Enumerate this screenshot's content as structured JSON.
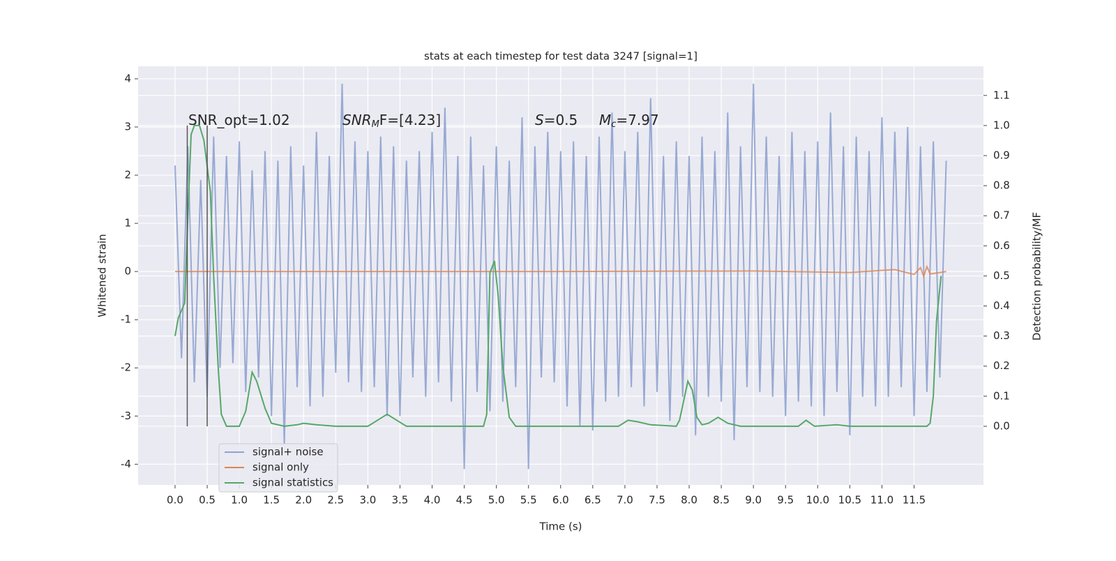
{
  "chart_data": {
    "type": "line",
    "title": "stats at each timestep for test data 3247 [signal=1]",
    "xlabel": "Time (s)",
    "ylabel": "Whitened strain",
    "y2label": "Detection probability/MF",
    "xlim": [
      -0.575,
      12.58
    ],
    "ylim": [
      -4.43,
      4.26
    ],
    "y2lim": [
      -0.195,
      1.197
    ],
    "xticks": [
      {
        "value": 0,
        "label": "0.0"
      },
      {
        "value": 0.5,
        "label": "0.5"
      },
      {
        "value": 1,
        "label": "1.0"
      },
      {
        "value": 1.5,
        "label": "1.5"
      },
      {
        "value": 2,
        "label": "2.0"
      },
      {
        "value": 2.5,
        "label": "2.5"
      },
      {
        "value": 3,
        "label": "3.0"
      },
      {
        "value": 3.5,
        "label": "3.5"
      },
      {
        "value": 4,
        "label": "4.0"
      },
      {
        "value": 4.5,
        "label": "4.5"
      },
      {
        "value": 5,
        "label": "5.0"
      },
      {
        "value": 5.5,
        "label": "5.5"
      },
      {
        "value": 6,
        "label": "6.0"
      },
      {
        "value": 6.5,
        "label": "6.5"
      },
      {
        "value": 7,
        "label": "7.0"
      },
      {
        "value": 7.5,
        "label": "7.5"
      },
      {
        "value": 8,
        "label": "8.0"
      },
      {
        "value": 8.5,
        "label": "8.5"
      },
      {
        "value": 9,
        "label": "9.0"
      },
      {
        "value": 9.5,
        "label": "9.5"
      },
      {
        "value": 10,
        "label": "10.0"
      },
      {
        "value": 10.5,
        "label": "10.5"
      },
      {
        "value": 11,
        "label": "11.0"
      },
      {
        "value": 11.5,
        "label": "11.5"
      }
    ],
    "yticks": [
      -4,
      -3,
      -2,
      -1,
      0,
      1,
      2,
      3,
      4
    ],
    "y2ticks": [
      {
        "value": 0,
        "label": "0.0"
      },
      {
        "value": 0.1,
        "label": "0.1"
      },
      {
        "value": 0.2,
        "label": "0.2"
      },
      {
        "value": 0.3,
        "label": "0.3"
      },
      {
        "value": 0.4,
        "label": "0.4"
      },
      {
        "value": 0.5,
        "label": "0.5"
      },
      {
        "value": 0.6,
        "label": "0.6"
      },
      {
        "value": 0.7,
        "label": "0.7"
      },
      {
        "value": 0.8,
        "label": "0.8"
      },
      {
        "value": 0.9,
        "label": "0.9"
      },
      {
        "value": 1,
        "label": "1.0"
      },
      {
        "value": 1.1,
        "label": "1.1"
      }
    ],
    "grid": true,
    "legend": "lower left",
    "annotations": [
      [
        {
          "t": "SNR_opt=1.02",
          "style": "normal"
        }
      ],
      [
        {
          "t": "SNR",
          "style": "italic"
        },
        {
          "t": "M",
          "style": "sub"
        },
        {
          "t": "F=[4.23]",
          "style": "normal"
        }
      ],
      [
        {
          "t": "S",
          "style": "italic"
        },
        {
          "t": "=0.5",
          "style": "normal"
        }
      ],
      [
        {
          "t": "M",
          "style": "italic"
        },
        {
          "t": "c",
          "style": "sub"
        },
        {
          "t": "=7.97",
          "style": "normal"
        }
      ]
    ],
    "vlines": [
      0.19,
      0.5
    ],
    "vline_color": "#555555",
    "series": [
      {
        "name": "signal+ noise",
        "color": "#8fa3cf",
        "axis": "y",
        "x": [
          0,
          0.1,
          0.2,
          0.3,
          0.4,
          0.5,
          0.6,
          0.7,
          0.8,
          0.9,
          1,
          1.1,
          1.2,
          1.3,
          1.4,
          1.5,
          1.6,
          1.7,
          1.8,
          1.9,
          2,
          2.1,
          2.2,
          2.3,
          2.4,
          2.5,
          2.6,
          2.7,
          2.8,
          2.9,
          3,
          3.1,
          3.2,
          3.3,
          3.4,
          3.5,
          3.6,
          3.7,
          3.8,
          3.9,
          4,
          4.1,
          4.2,
          4.3,
          4.4,
          4.5,
          4.6,
          4.7,
          4.8,
          4.9,
          5,
          5.1,
          5.2,
          5.3,
          5.4,
          5.5,
          5.6,
          5.7,
          5.8,
          5.9,
          6,
          6.1,
          6.2,
          6.3,
          6.4,
          6.5,
          6.6,
          6.7,
          6.8,
          6.9,
          7,
          7.1,
          7.2,
          7.3,
          7.4,
          7.5,
          7.6,
          7.7,
          7.8,
          7.9,
          8,
          8.1,
          8.2,
          8.3,
          8.4,
          8.5,
          8.6,
          8.7,
          8.8,
          8.9,
          9,
          9.1,
          9.2,
          9.3,
          9.4,
          9.5,
          9.6,
          9.7,
          9.8,
          9.9,
          10,
          10.1,
          10.2,
          10.3,
          10.4,
          10.5,
          10.6,
          10.7,
          10.8,
          10.9,
          11,
          11.1,
          11.2,
          11.3,
          11.4,
          11.5,
          11.6,
          11.7,
          11.8,
          11.9,
          12
        ],
        "values": [
          2.2,
          -1.8,
          2.6,
          -2.3,
          1.9,
          -2.6,
          2.8,
          -2.0,
          2.4,
          -1.9,
          2.7,
          -2.5,
          2.1,
          -2.2,
          2.5,
          -3.0,
          2.3,
          -3.6,
          2.6,
          -2.4,
          2.2,
          -2.8,
          2.9,
          -2.6,
          2.4,
          -2.1,
          3.9,
          -2.3,
          2.7,
          -2.5,
          2.5,
          -2.4,
          2.8,
          -3.0,
          2.6,
          -3.0,
          2.3,
          -2.2,
          2.5,
          -2.6,
          2.9,
          -2.3,
          3.4,
          -2.7,
          2.4,
          -4.1,
          2.8,
          -2.5,
          2.2,
          -2.9,
          2.6,
          -2.7,
          2.3,
          -2.4,
          3.2,
          -4.1,
          2.6,
          -2.2,
          2.9,
          -2.3,
          2.5,
          -2.8,
          2.7,
          -3.2,
          2.4,
          -3.3,
          2.8,
          -2.7,
          3.3,
          -2.6,
          2.5,
          -2.4,
          2.9,
          -2.8,
          3.6,
          -2.5,
          2.4,
          -3.1,
          2.7,
          -2.6,
          2.4,
          -3.4,
          2.8,
          -2.6,
          2.5,
          -2.7,
          3.3,
          -3.5,
          2.6,
          -2.4,
          3.9,
          -2.5,
          2.8,
          -2.6,
          2.4,
          -3.0,
          2.9,
          -2.7,
          2.5,
          -2.8,
          2.7,
          -3.0,
          3.3,
          -2.5,
          2.6,
          -3.4,
          2.8,
          -2.6,
          2.5,
          -2.8,
          3.2,
          -2.6,
          2.9,
          -2.4,
          3.0,
          -3.0,
          2.6,
          -2.5,
          2.7,
          -2.2,
          2.3
        ]
      },
      {
        "name": "signal only",
        "color": "#dd8452",
        "axis": "y",
        "x": [
          0,
          6,
          9,
          10.5,
          11.2,
          11.5,
          11.6,
          11.65,
          11.7,
          11.75,
          12
        ],
        "values": [
          0,
          0,
          0.01,
          -0.02,
          0.04,
          -0.06,
          0.08,
          -0.1,
          0.1,
          -0.05,
          0
        ]
      },
      {
        "name": "signal statistics",
        "color": "#55a868",
        "axis": "y2",
        "x": [
          0,
          0.05,
          0.15,
          0.2,
          0.25,
          0.3,
          0.38,
          0.45,
          0.55,
          0.6,
          0.67,
          0.72,
          0.8,
          1,
          1.1,
          1.2,
          1.27,
          1.4,
          1.5,
          1.7,
          1.9,
          2,
          2.2,
          2.5,
          3,
          3.15,
          3.3,
          3.45,
          3.6,
          4.8,
          4.85,
          4.9,
          4.97,
          5.03,
          5.1,
          5.2,
          5.3,
          6.5,
          6.9,
          7.05,
          7.2,
          7.4,
          7.8,
          7.85,
          7.93,
          7.98,
          8.05,
          8.12,
          8.2,
          8.3,
          8.45,
          8.6,
          8.8,
          9.7,
          9.82,
          9.95,
          10.3,
          10.5,
          11.7,
          11.75,
          11.8,
          11.85,
          11.92
        ],
        "values": [
          0.3,
          0.36,
          0.41,
          0.7,
          0.97,
          1.0,
          1.0,
          0.95,
          0.78,
          0.5,
          0.2,
          0.04,
          0.0,
          0.0,
          0.05,
          0.18,
          0.15,
          0.06,
          0.01,
          0.0,
          0.005,
          0.01,
          0.005,
          0.0,
          0.0,
          0.02,
          0.04,
          0.02,
          0.0,
          0.0,
          0.04,
          0.51,
          0.55,
          0.43,
          0.2,
          0.03,
          0.0,
          0.0,
          0.0,
          0.02,
          0.015,
          0.005,
          0.0,
          0.02,
          0.1,
          0.15,
          0.12,
          0.03,
          0.005,
          0.01,
          0.03,
          0.01,
          0.0,
          0.0,
          0.02,
          0.0,
          0.005,
          0.0,
          0.0,
          0.01,
          0.1,
          0.35,
          0.5
        ]
      }
    ]
  }
}
